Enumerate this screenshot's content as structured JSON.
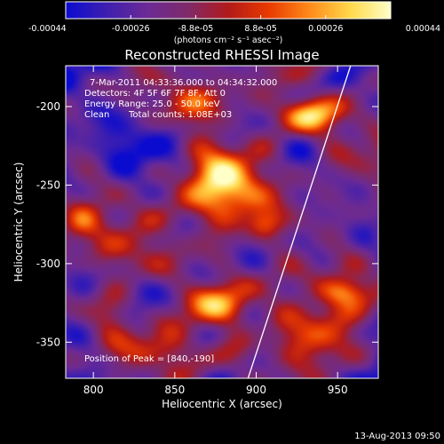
{
  "colorbar": {
    "colors": [
      "#0b0bd0",
      "#3d1fb0",
      "#6b2a95",
      "#7f2a6a",
      "#b21a1a",
      "#e83a00",
      "#ff8a1a",
      "#ffd84a",
      "#ffffc8"
    ],
    "tick_labels": [
      "-0.00044",
      "-0.00026",
      "-8.8e-05",
      "8.8e-05",
      "0.00026",
      "0.00044"
    ],
    "unit_label": "(photons cm⁻² s⁻¹ asec⁻²)"
  },
  "chart_data": {
    "type": "heatmap",
    "title": "Reconstructed RHESSI Image",
    "xlabel": "Heliocentric X (arcsec)",
    "ylabel": "Heliocentric Y (arcsec)",
    "xlim": [
      783,
      975
    ],
    "ylim": [
      -373,
      -174
    ],
    "x_ticks": [
      800,
      850,
      900,
      950
    ],
    "y_ticks": [
      -200,
      -250,
      -300,
      -350
    ],
    "x_tick_labels": [
      "800",
      "850",
      "900",
      "950"
    ],
    "y_tick_labels": [
      "-200",
      "-250",
      "-300",
      "-350"
    ],
    "color_range": [
      -0.00044,
      0.00044
    ],
    "peak_position": [
      840,
      -190
    ],
    "limb_line": [
      [
        895,
        -373
      ],
      [
        958,
        -174
      ]
    ],
    "sources": [
      {
        "x": 878,
        "y": -248,
        "sx": 18,
        "sy": 17,
        "amp": 1.0
      },
      {
        "x": 930,
        "y": -205,
        "sx": 17,
        "sy": 8,
        "amp": 0.85
      },
      {
        "x": 865,
        "y": -197,
        "sx": 14,
        "sy": 10,
        "amp": 0.55
      },
      {
        "x": 792,
        "y": -272,
        "sx": 9,
        "sy": 9,
        "amp": 0.55
      },
      {
        "x": 820,
        "y": -295,
        "sx": 14,
        "sy": 10,
        "amp": 0.55
      },
      {
        "x": 812,
        "y": -330,
        "sx": 10,
        "sy": 10,
        "amp": 0.55
      },
      {
        "x": 872,
        "y": -325,
        "sx": 14,
        "sy": 9,
        "amp": 0.55
      },
      {
        "x": 840,
        "y": -355,
        "sx": 16,
        "sy": 9,
        "amp": 0.5
      },
      {
        "x": 945,
        "y": -350,
        "sx": 16,
        "sy": 12,
        "amp": 0.7
      },
      {
        "x": 955,
        "y": -318,
        "sx": 10,
        "sy": 6,
        "amp": 0.45
      },
      {
        "x": 905,
        "y": -275,
        "sx": 7,
        "sy": 6,
        "amp": 0.35
      },
      {
        "x": 900,
        "y": -345,
        "sx": 10,
        "sy": 8,
        "amp": -0.4
      },
      {
        "x": 830,
        "y": -225,
        "sx": 16,
        "sy": 12,
        "amp": -0.3
      },
      {
        "x": 925,
        "y": -245,
        "sx": 22,
        "sy": 16,
        "amp": -0.25
      },
      {
        "x": 940,
        "y": -290,
        "sx": 20,
        "sy": 10,
        "amp": -0.2
      }
    ]
  },
  "info": {
    "time_range": "7-Mar-2011 04:33:36.000 to 04:34:32.000",
    "detectors": "Detectors: 4F 5F 6F 7F 8F, Att 0",
    "energy_range": "Energy Range: 25.0 - 50.0 keV",
    "method": "Clean",
    "total_counts": "Total counts: 1.08E+03",
    "peak_position": "Position of Peak = [840,-190]"
  },
  "timestamp": "13-Aug-2013 09:50"
}
